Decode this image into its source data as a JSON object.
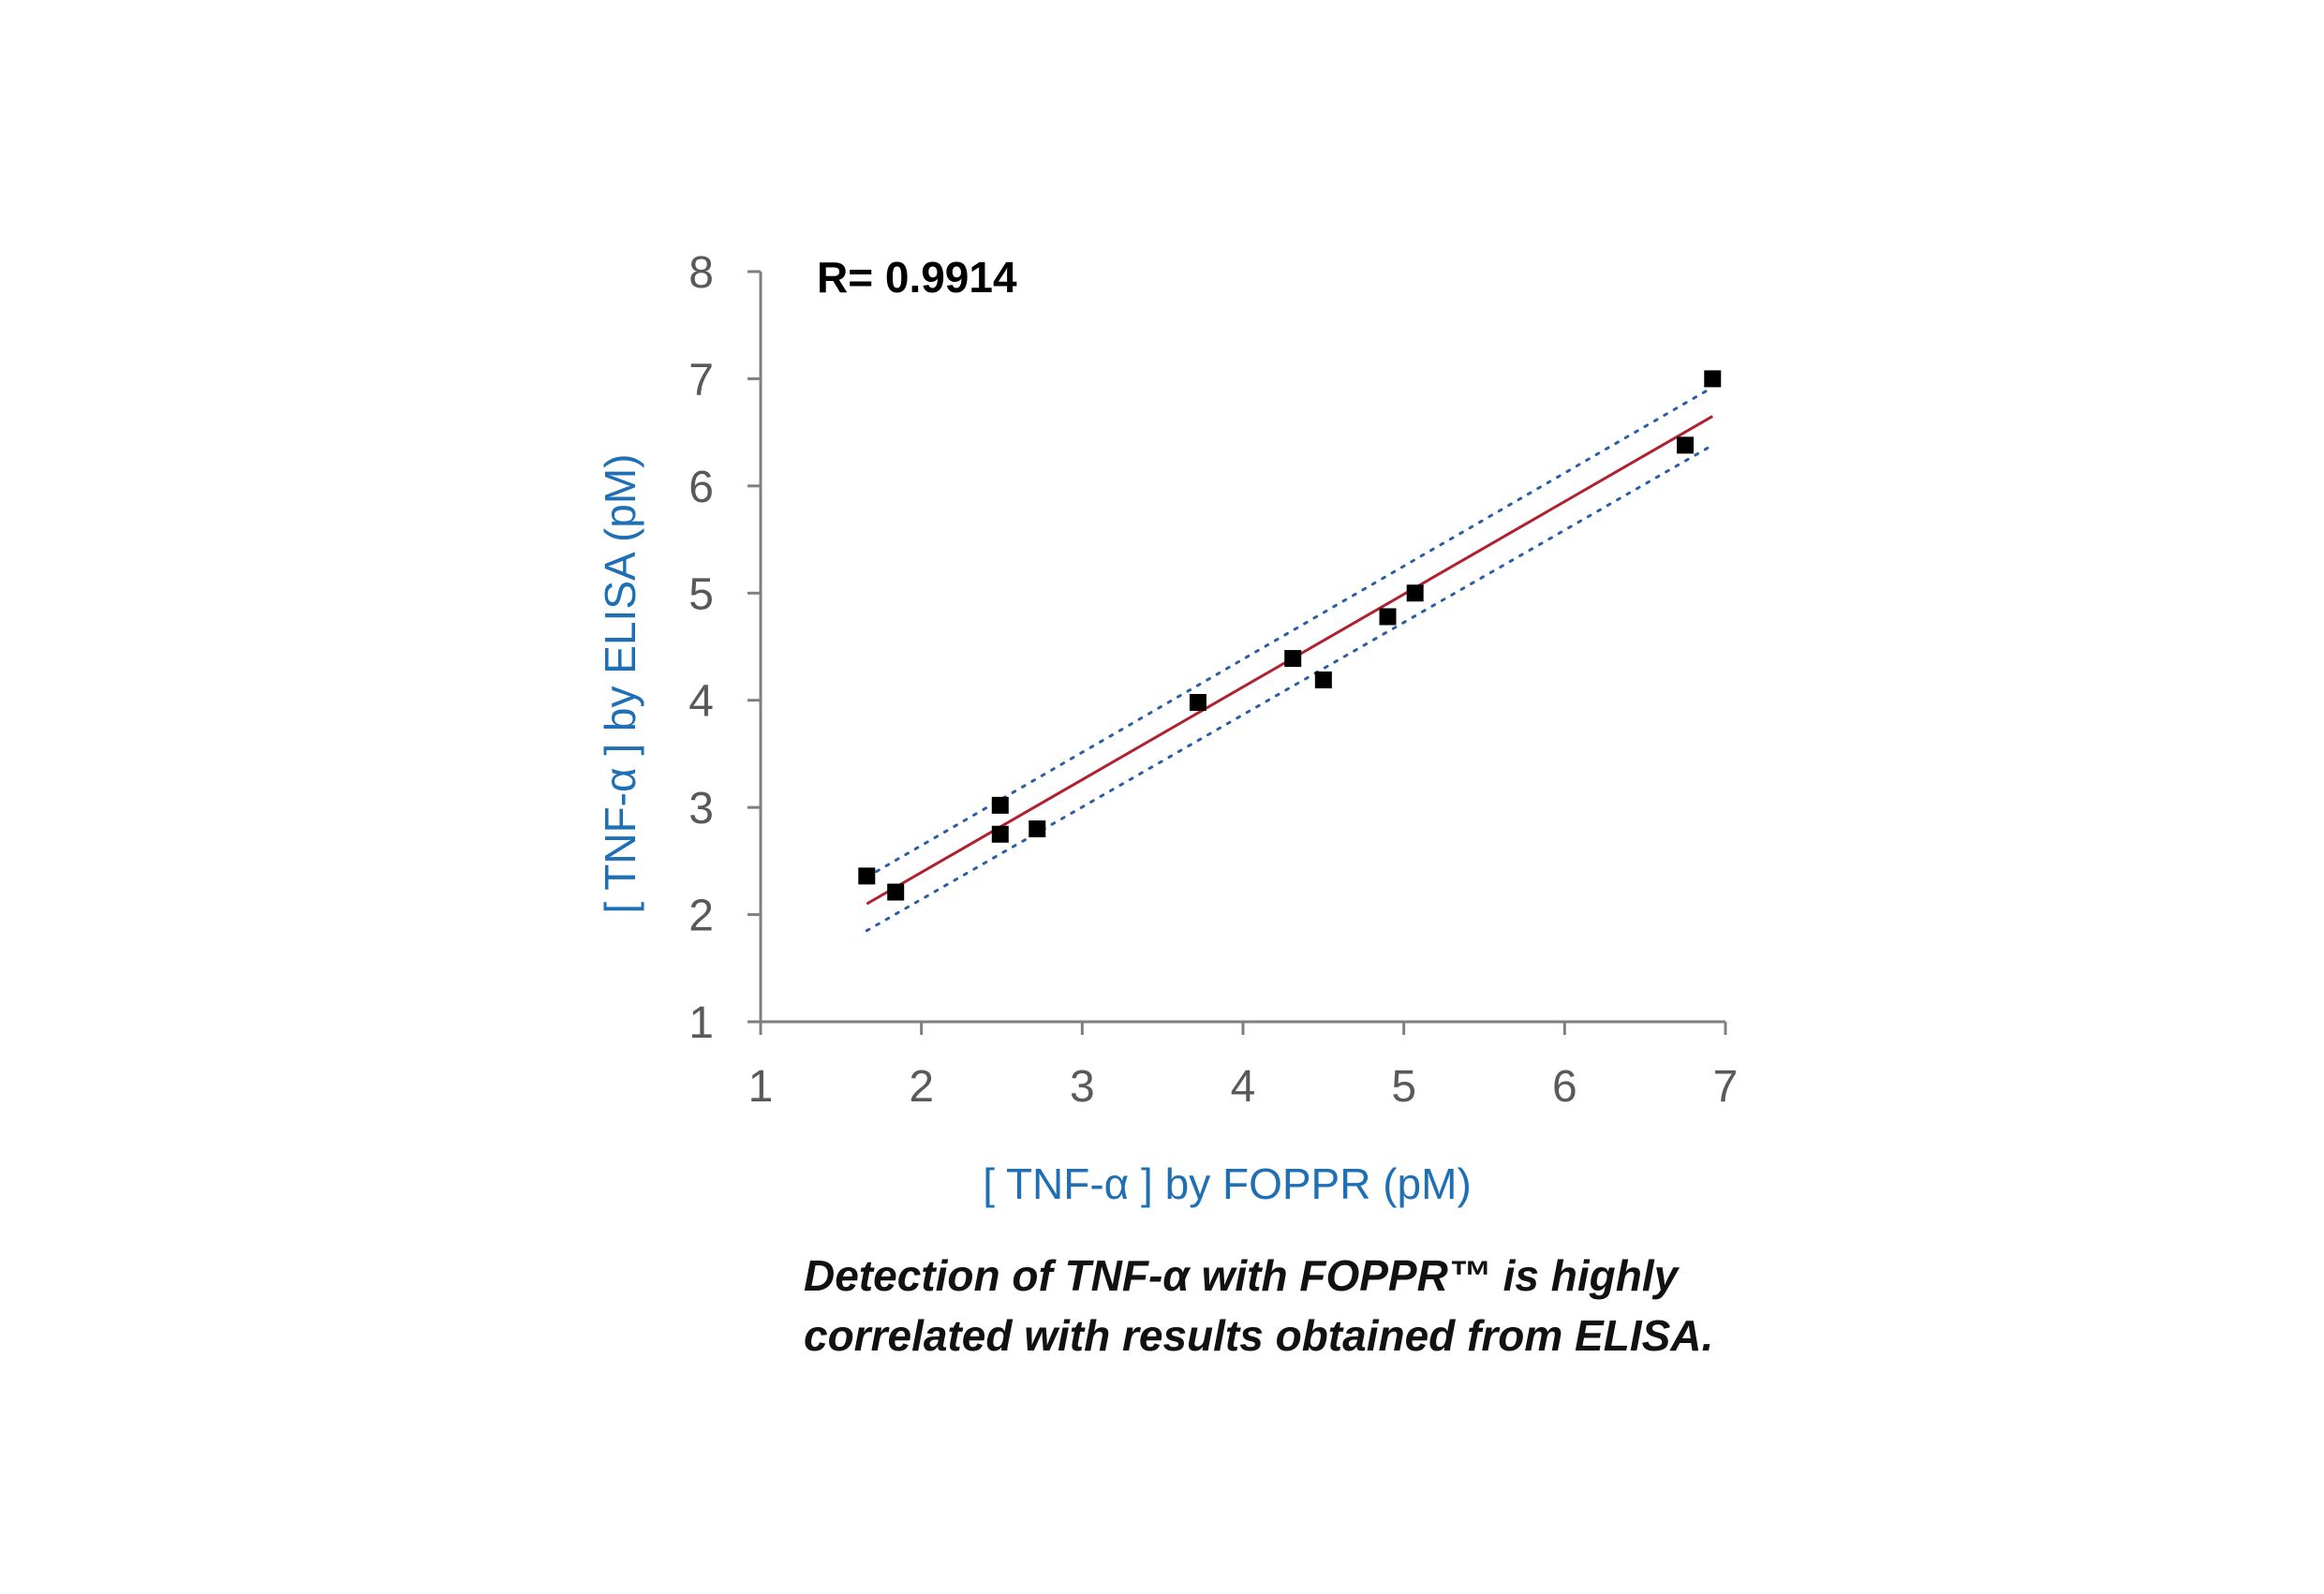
{
  "chart_data": {
    "type": "scatter",
    "title": "",
    "annotation": "R= 0.9914",
    "xlabel": "[ TNF-α ] by FOPPR (pM)",
    "ylabel": "[ TNF-α ] by ELISA (pM)",
    "xlim": [
      1,
      7
    ],
    "ylim": [
      1,
      8
    ],
    "x_ticks": [
      "1",
      "2",
      "3",
      "4",
      "5",
      "6",
      "7"
    ],
    "y_ticks": [
      "1",
      "2",
      "3",
      "4",
      "5",
      "6",
      "7",
      "8"
    ],
    "grid": false,
    "series": [
      {
        "marker": "square",
        "color": "#000000",
        "points": [
          {
            "x": 1.66,
            "y": 2.36
          },
          {
            "x": 1.84,
            "y": 2.21
          },
          {
            "x": 2.49,
            "y": 3.02
          },
          {
            "x": 2.49,
            "y": 2.75
          },
          {
            "x": 2.72,
            "y": 2.8
          },
          {
            "x": 3.72,
            "y": 3.98
          },
          {
            "x": 4.31,
            "y": 4.39
          },
          {
            "x": 4.5,
            "y": 4.19
          },
          {
            "x": 4.9,
            "y": 4.78
          },
          {
            "x": 5.07,
            "y": 5.0
          },
          {
            "x": 6.75,
            "y": 6.38
          },
          {
            "x": 6.92,
            "y": 7.0
          }
        ]
      }
    ],
    "fit_line": {
      "color": "#b0202e",
      "x": [
        1.66,
        6.92
      ],
      "y": [
        2.1,
        6.65
      ]
    },
    "confidence_band": {
      "color": "#2a5fa8",
      "upper": {
        "x": [
          1.66,
          6.92
        ],
        "y": [
          2.35,
          6.92
        ]
      },
      "lower": {
        "x": [
          1.66,
          6.92
        ],
        "y": [
          1.85,
          6.38
        ]
      }
    }
  },
  "caption": {
    "line1": "Detection of TNF-α with FOPPR™ is highly",
    "line2": "correlated with results obtained from ELISA."
  }
}
